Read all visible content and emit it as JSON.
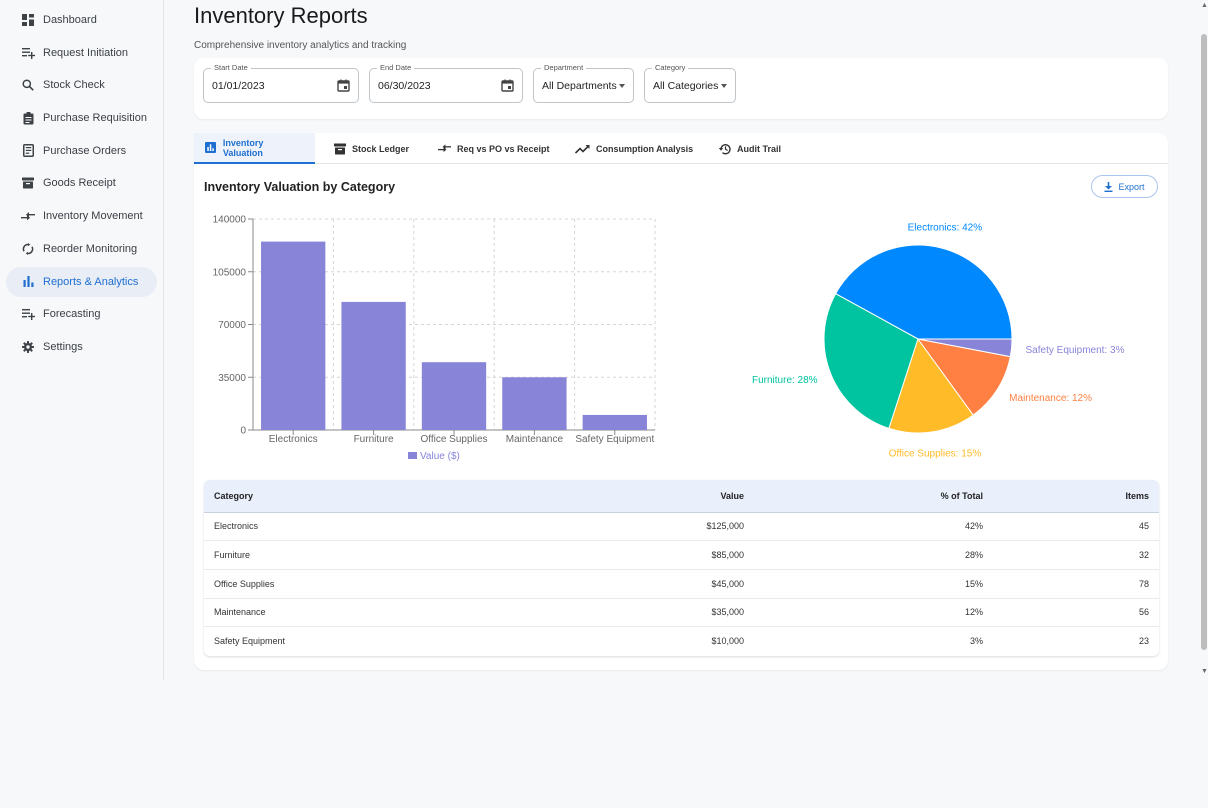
{
  "sidebar": {
    "items": [
      {
        "label": "Dashboard",
        "icon": "dashboard-icon"
      },
      {
        "label": "Request Initiation",
        "icon": "playlist-add-icon"
      },
      {
        "label": "Stock Check",
        "icon": "search-icon"
      },
      {
        "label": "Purchase Requisition",
        "icon": "clipboard-icon"
      },
      {
        "label": "Purchase Orders",
        "icon": "receipt-icon"
      },
      {
        "label": "Goods Receipt",
        "icon": "inbox-box-icon"
      },
      {
        "label": "Inventory Movement",
        "icon": "compare-arrows-icon"
      },
      {
        "label": "Reorder Monitoring",
        "icon": "sync-icon"
      },
      {
        "label": "Reports & Analytics",
        "icon": "bar-chart-icon",
        "active": true
      },
      {
        "label": "Forecasting",
        "icon": "playlist-add-icon"
      },
      {
        "label": "Settings",
        "icon": "gear-icon"
      }
    ]
  },
  "header": {
    "title": "Inventory Reports",
    "subtitle": "Comprehensive inventory analytics and tracking"
  },
  "filters": {
    "start_date": {
      "label": "Start Date",
      "value": "01/01/2023"
    },
    "end_date": {
      "label": "End Date",
      "value": "06/30/2023"
    },
    "department": {
      "label": "Department",
      "value": "All Departments"
    },
    "category": {
      "label": "Category",
      "value": "All Categories"
    }
  },
  "tabs": [
    {
      "label": "Inventory Valuation",
      "icon": "bar-chart-icon",
      "active": true
    },
    {
      "label": "Stock Ledger",
      "icon": "inbox-box-icon"
    },
    {
      "label": "Req vs PO vs Receipt",
      "icon": "compare-arrows-icon"
    },
    {
      "label": "Consumption Analysis",
      "icon": "trending-up-icon"
    },
    {
      "label": "Audit Trail",
      "icon": "history-icon"
    }
  ],
  "section": {
    "title": "Inventory Valuation by Category",
    "export_label": "Export"
  },
  "colors": {
    "accent": "#1f6fd1",
    "bar": "#8884d8",
    "pie": [
      "#0088fe",
      "#00c49f",
      "#ffbb28",
      "#ff8042",
      "#8884d8"
    ]
  },
  "chart_data": [
    {
      "type": "bar",
      "categories": [
        "Electronics",
        "Furniture",
        "Office Supplies",
        "Maintenance",
        "Safety Equipment"
      ],
      "series": [
        {
          "name": "Value ($)",
          "values": [
            125000,
            85000,
            45000,
            35000,
            10000
          ]
        }
      ],
      "yticks": [
        "0",
        "35000",
        "70000",
        "105000",
        "140000"
      ],
      "ylim": [
        0,
        140000
      ],
      "grid": true,
      "legend": "bottom"
    },
    {
      "type": "pie",
      "slices": [
        {
          "label": "Electronics: 42%",
          "value": 42
        },
        {
          "label": "Furniture: 28%",
          "value": 28
        },
        {
          "label": "Office Supplies: 15%",
          "value": 15
        },
        {
          "label": "Maintenance: 12%",
          "value": 12
        },
        {
          "label": "Safety Equipment: 3%",
          "value": 3
        }
      ]
    }
  ],
  "table": {
    "headers": [
      "Category",
      "Value",
      "% of Total",
      "Items"
    ],
    "rows": [
      [
        "Electronics",
        "$125,000",
        "42%",
        "45"
      ],
      [
        "Furniture",
        "$85,000",
        "28%",
        "32"
      ],
      [
        "Office Supplies",
        "$45,000",
        "15%",
        "78"
      ],
      [
        "Maintenance",
        "$35,000",
        "12%",
        "56"
      ],
      [
        "Safety Equipment",
        "$10,000",
        "3%",
        "23"
      ]
    ]
  }
}
